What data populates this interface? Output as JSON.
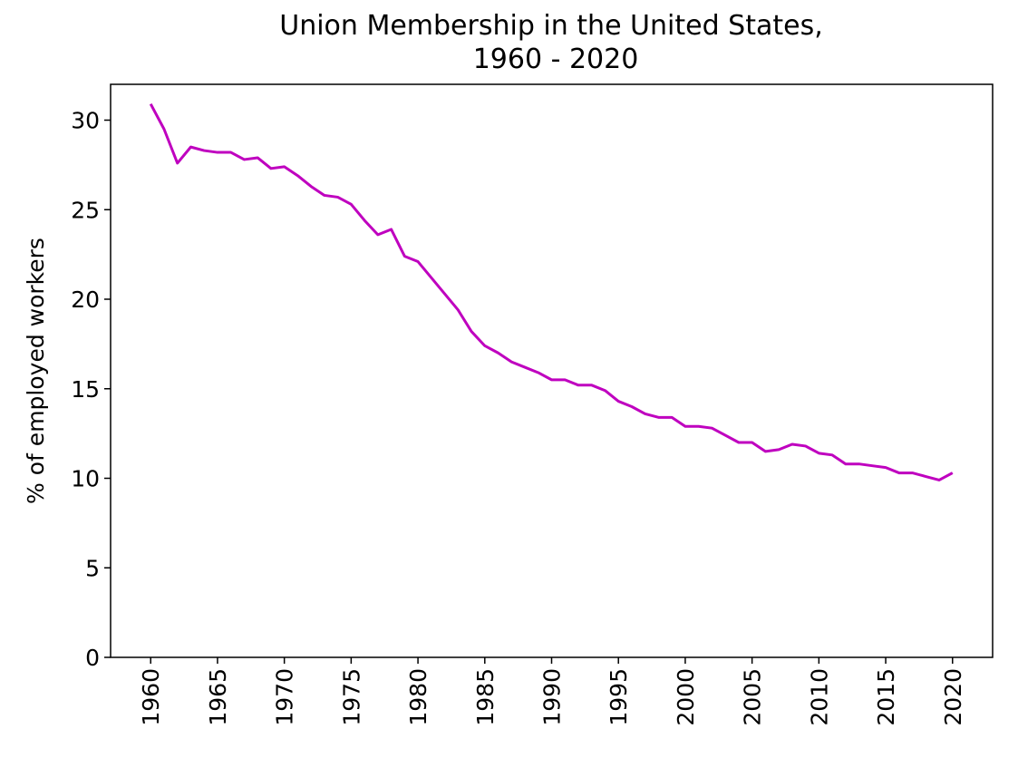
{
  "chart_data": {
    "type": "line",
    "title": [
      "Union Membership in the United States,",
      "1960 - 2020"
    ],
    "y_label": "% of employed workers",
    "x": [
      1960,
      1961,
      1962,
      1963,
      1964,
      1965,
      1966,
      1967,
      1968,
      1969,
      1970,
      1971,
      1972,
      1973,
      1974,
      1975,
      1976,
      1977,
      1978,
      1979,
      1980,
      1981,
      1982,
      1983,
      1984,
      1985,
      1986,
      1987,
      1988,
      1989,
      1990,
      1991,
      1992,
      1993,
      1994,
      1995,
      1996,
      1997,
      1998,
      1999,
      2000,
      2001,
      2002,
      2003,
      2004,
      2005,
      2006,
      2007,
      2008,
      2009,
      2010,
      2011,
      2012,
      2013,
      2014,
      2015,
      2016,
      2017,
      2018,
      2019,
      2020
    ],
    "series": [
      {
        "name": "Union membership",
        "color": "#bf00bf",
        "values": [
          30.9,
          29.5,
          27.6,
          28.5,
          28.3,
          28.2,
          28.2,
          27.8,
          27.9,
          27.3,
          27.4,
          26.9,
          26.3,
          25.8,
          25.7,
          25.3,
          24.4,
          23.6,
          23.9,
          22.4,
          22.1,
          21.2,
          20.3,
          19.4,
          18.2,
          17.4,
          17.0,
          16.5,
          16.2,
          15.9,
          15.5,
          15.5,
          15.2,
          15.2,
          14.9,
          14.3,
          14.0,
          13.6,
          13.4,
          13.4,
          12.9,
          12.9,
          12.8,
          12.4,
          12.0,
          12.0,
          11.5,
          11.6,
          11.9,
          11.8,
          11.4,
          11.3,
          10.8,
          10.8,
          10.7,
          10.6,
          10.3,
          10.3,
          10.1,
          9.9,
          10.3
        ]
      }
    ],
    "xlim": [
      1957,
      2023
    ],
    "xticks": [
      1960,
      1965,
      1970,
      1975,
      1980,
      1985,
      1990,
      1995,
      2000,
      2005,
      2010,
      2015,
      2020
    ],
    "ylim": [
      0,
      32
    ],
    "yticks": [
      0,
      5,
      10,
      15,
      20,
      25,
      30
    ],
    "grid": false
  }
}
